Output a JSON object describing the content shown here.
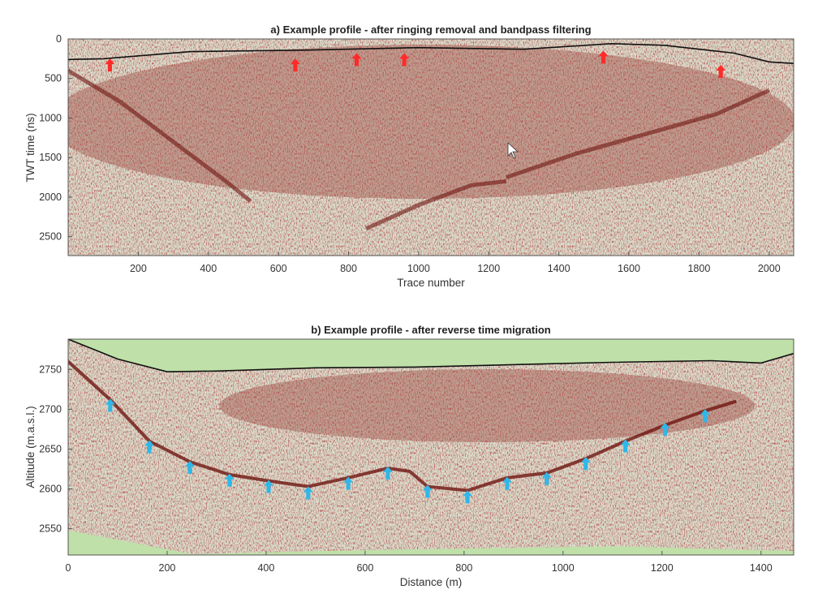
{
  "chart_data": [
    {
      "type": "heatmap",
      "title": "a) Example profile - after ringing removal and bandpass filtering",
      "xlabel": "Trace number",
      "ylabel": "TWT time (ns)",
      "xlim": [
        0,
        2070
      ],
      "ylim": [
        2740,
        0
      ],
      "xticks": [
        200,
        400,
        600,
        800,
        1000,
        1200,
        1400,
        1600,
        1800,
        2000
      ],
      "yticks": [
        0,
        500,
        1000,
        1500,
        2000,
        2500
      ],
      "surface_line": {
        "trace": [
          0,
          100,
          350,
          700,
          1000,
          1300,
          1550,
          1700,
          1900,
          2000,
          2070
        ],
        "time": [
          260,
          250,
          160,
          140,
          110,
          130,
          60,
          80,
          180,
          290,
          310
        ]
      },
      "bed_reflections": [
        {
          "trace": [
            0,
            150,
            300,
            450,
            520
          ],
          "time": [
            400,
            800,
            1300,
            1800,
            2050
          ]
        },
        {
          "trace": [
            850,
            1000,
            1150,
            1250
          ],
          "time": [
            2400,
            2100,
            1850,
            1800
          ]
        },
        {
          "trace": [
            1250,
            1450,
            1650,
            1850,
            2000
          ],
          "time": [
            1750,
            1450,
            1200,
            950,
            650
          ]
        }
      ],
      "arrows": {
        "color": "#ff2a2a",
        "trace": [
          119,
          648,
          823,
          959,
          1527,
          1862
        ],
        "time": [
          330,
          330,
          260,
          260,
          230,
          410
        ]
      }
    },
    {
      "type": "heatmap",
      "title": "b) Example profile -  after reverse time migration",
      "xlabel": "Distance (m)",
      "ylabel": "Altitude (m.a.s.l.)",
      "xlim": [
        0,
        1466
      ],
      "ylim": [
        2517,
        2788
      ],
      "xticks": [
        0,
        200,
        400,
        600,
        800,
        1000,
        1200,
        1400
      ],
      "yticks": [
        2550,
        2600,
        2650,
        2700,
        2750
      ],
      "surface_line": {
        "distance": [
          0,
          100,
          200,
          300,
          500,
          700,
          900,
          1100,
          1300,
          1400,
          1466
        ],
        "altitude": [
          2788,
          2763,
          2747,
          2748,
          2752,
          2753,
          2756,
          2759,
          2761,
          2758,
          2770
        ]
      },
      "bed_line": {
        "distance": [
          0,
          85,
          164,
          246,
          326,
          405,
          485,
          566,
          646,
          690,
          726,
          807,
          887,
          967,
          1046,
          1126,
          1206,
          1287,
          1350
        ],
        "altitude": [
          2760,
          2712,
          2660,
          2634,
          2618,
          2610,
          2603,
          2614,
          2626,
          2622,
          2603,
          2598,
          2614,
          2620,
          2638,
          2660,
          2680,
          2698,
          2710
        ]
      },
      "arrows": {
        "color": "#2fb7e8",
        "distance": [
          85,
          164,
          246,
          326,
          405,
          485,
          566,
          646,
          726,
          807,
          887,
          967,
          1046,
          1126,
          1206,
          1287
        ],
        "altitude": [
          2705,
          2653,
          2627,
          2611,
          2603,
          2595,
          2607,
          2620,
          2597,
          2590,
          2607,
          2613,
          2632,
          2654,
          2675,
          2692
        ]
      }
    }
  ]
}
